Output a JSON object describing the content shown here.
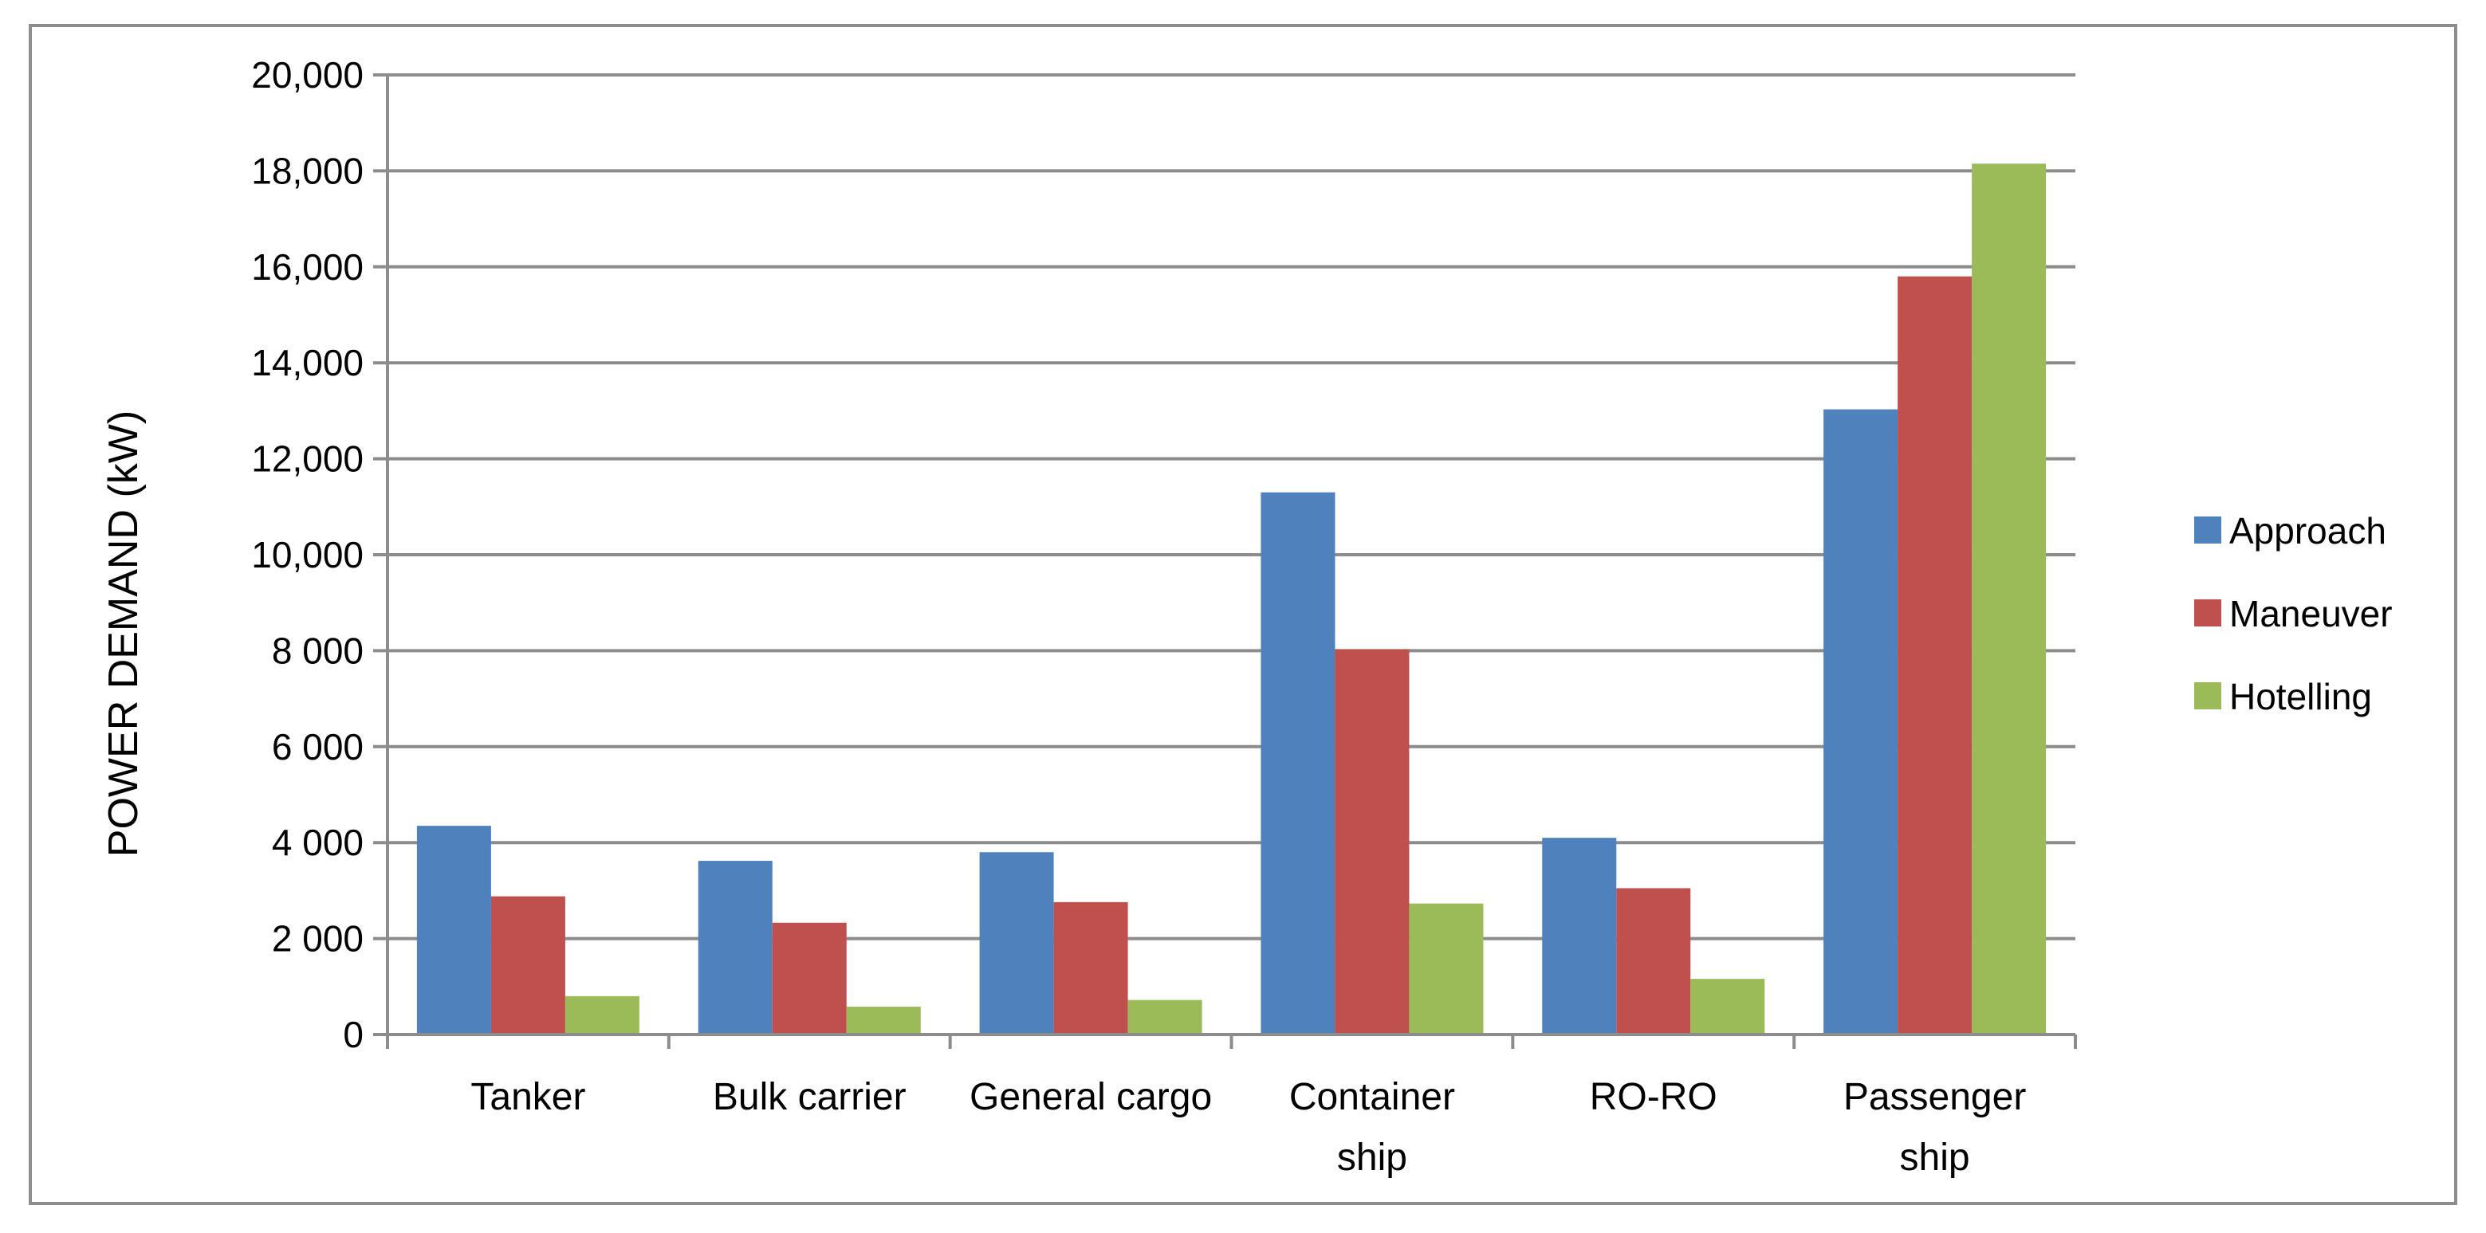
{
  "chart_data": {
    "type": "bar",
    "title": "",
    "xlabel": "",
    "ylabel": "POWER DEMAND (kW)",
    "ylim": [
      0,
      20000
    ],
    "yticks": [
      0,
      2000,
      4000,
      6000,
      8000,
      10000,
      12000,
      14000,
      16000,
      18000,
      20000
    ],
    "ytick_labels": [
      "0",
      "2 000",
      "4 000",
      "6 000",
      "8 000",
      "10,000",
      "12,000",
      "14,000",
      "16,000",
      "18,000",
      "20,000"
    ],
    "categories": [
      "Tanker",
      "Bulk carrier",
      "General cargo",
      "Container ship",
      "RO-RO",
      "Passenger ship"
    ],
    "category_lines": [
      [
        "Tanker"
      ],
      [
        "Bulk carrier"
      ],
      [
        "General cargo"
      ],
      [
        "Container",
        "ship"
      ],
      [
        "RO-RO"
      ],
      [
        "Passenger",
        "ship"
      ]
    ],
    "series": [
      {
        "name": "Approach",
        "color": "#4f81bd",
        "values": [
          4350,
          3620,
          3800,
          11300,
          4100,
          13030
        ]
      },
      {
        "name": "Maneuver",
        "color": "#c0504d",
        "values": [
          2880,
          2330,
          2760,
          8030,
          3050,
          15800
        ]
      },
      {
        "name": "Hotelling",
        "color": "#9bbb59",
        "values": [
          800,
          580,
          720,
          2730,
          1160,
          18150
        ]
      }
    ],
    "grid": true,
    "legend_position": "right"
  }
}
